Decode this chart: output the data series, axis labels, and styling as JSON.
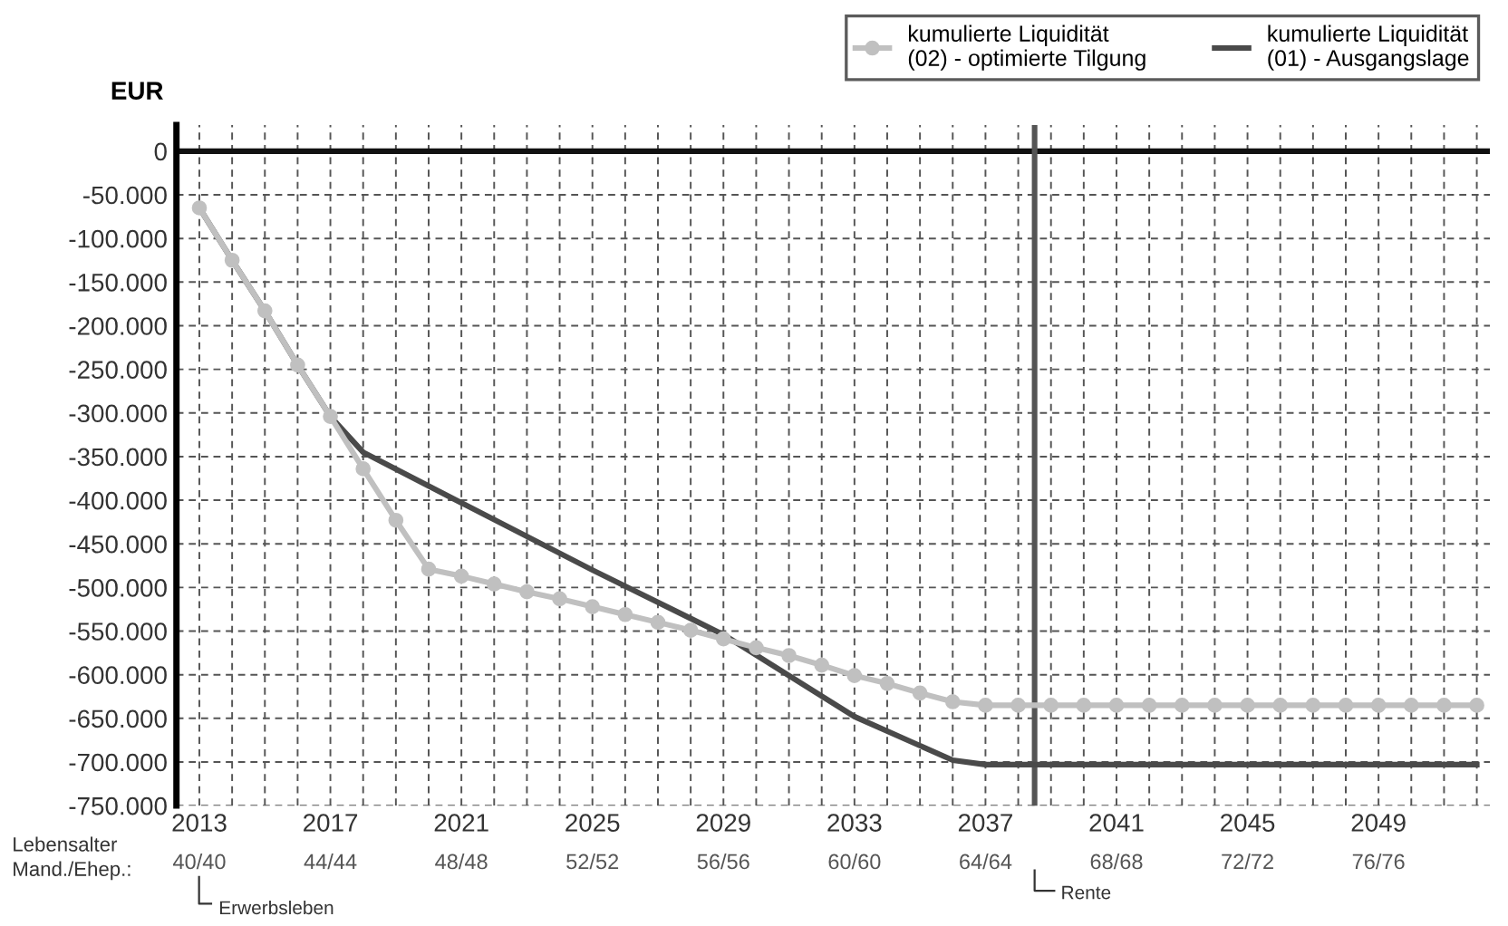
{
  "chart_data": {
    "type": "line",
    "ylabel": "EUR",
    "xlim": [
      2012.3,
      2052.4
    ],
    "ylim": [
      -750000,
      30000
    ],
    "xticks": [
      2013,
      {
        "value": 2014,
        "label": null
      },
      {
        "value": 2015,
        "label": null
      },
      {
        "value": 2016,
        "label": null
      },
      2017,
      {
        "value": 2018,
        "label": null
      },
      {
        "value": 2019,
        "label": null
      },
      {
        "value": 2020,
        "label": null
      },
      2021,
      {
        "value": 2022,
        "label": null
      },
      {
        "value": 2023,
        "label": null
      },
      {
        "value": 2024,
        "label": null
      },
      2025,
      {
        "value": 2026,
        "label": null
      },
      {
        "value": 2027,
        "label": null
      },
      {
        "value": 2028,
        "label": null
      },
      2029,
      {
        "value": 2030,
        "label": null
      },
      {
        "value": 2031,
        "label": null
      },
      {
        "value": 2032,
        "label": null
      },
      2033,
      {
        "value": 2034,
        "label": null
      },
      {
        "value": 2035,
        "label": null
      },
      {
        "value": 2036,
        "label": null
      },
      2037,
      {
        "value": 2038,
        "label": null
      },
      {
        "value": 2039,
        "label": null
      },
      {
        "value": 2040,
        "label": null
      },
      2041,
      {
        "value": 2042,
        "label": null
      },
      {
        "value": 2043,
        "label": null
      },
      {
        "value": 2044,
        "label": null
      },
      2045,
      {
        "value": 2046,
        "label": null
      },
      {
        "value": 2047,
        "label": null
      },
      {
        "value": 2048,
        "label": null
      },
      2049,
      {
        "value": 2050,
        "label": null
      },
      {
        "value": 2051,
        "label": null
      },
      {
        "value": 2052,
        "label": null
      }
    ],
    "yticks": [
      {
        "value": 0,
        "label": "0"
      },
      {
        "value": -50000,
        "label": "-50.000"
      },
      {
        "value": -100000,
        "label": "-100.000"
      },
      {
        "value": -150000,
        "label": "-150.000"
      },
      {
        "value": -200000,
        "label": "-200.000"
      },
      {
        "value": -250000,
        "label": "-250.000"
      },
      {
        "value": -300000,
        "label": "-300.000"
      },
      {
        "value": -350000,
        "label": "-350.000"
      },
      {
        "value": -400000,
        "label": "-400.000"
      },
      {
        "value": -450000,
        "label": "-450.000"
      },
      {
        "value": -500000,
        "label": "-500.000"
      },
      {
        "value": -550000,
        "label": "-550.000"
      },
      {
        "value": -600000,
        "label": "-600.000"
      },
      {
        "value": -650000,
        "label": "-650.000"
      },
      {
        "value": -700000,
        "label": "-700.000"
      },
      {
        "value": -750000,
        "label": "-750.000"
      }
    ],
    "grid": true,
    "legend": "top right",
    "series": [
      {
        "name": "kumulierte Liquidität\n(02) - optimierte Tilgung",
        "color": "#c0c0c0",
        "marker": "circle",
        "x": [
          2013,
          2014,
          2015,
          2016,
          2017,
          2018,
          2019,
          2020,
          2021,
          2022,
          2023,
          2024,
          2025,
          2026,
          2027,
          2028,
          2029,
          2030,
          2031,
          2032,
          2033,
          2034,
          2035,
          2036,
          2037,
          2038,
          2039,
          2040,
          2041,
          2042,
          2043,
          2044,
          2045,
          2046,
          2047,
          2048,
          2049,
          2050,
          2051,
          2052
        ],
        "values": [
          -65000,
          -125000,
          -183000,
          -245000,
          -304000,
          -364000,
          -423000,
          -479000,
          -487000,
          -496000,
          -505000,
          -513000,
          -522000,
          -531000,
          -540000,
          -549000,
          -559000,
          -569000,
          -578000,
          -589000,
          -601000,
          -610000,
          -621000,
          -631000,
          -635000,
          -635000,
          -635000,
          -635000,
          -635000,
          -635000,
          -635000,
          -635000,
          -635000,
          -635000,
          -635000,
          -635000,
          -635000,
          -635000,
          -635000,
          -635000
        ]
      },
      {
        "name": "kumulierte Liquidität\n(01) - Ausgangslage",
        "color": "#4a4a4a",
        "marker": "none",
        "x": [
          2013,
          2014,
          2015,
          2016,
          2017,
          2018,
          2021,
          2025,
          2029,
          2033,
          2036,
          2037,
          2052
        ],
        "values": [
          -65000,
          -125000,
          -183000,
          -245000,
          -304000,
          -345000,
          -403000,
          -480000,
          -554000,
          -648000,
          -698000,
          -703000,
          -703000
        ]
      }
    ],
    "ref_lines": [
      {
        "axis": "y",
        "value": 0,
        "color": "#111111"
      },
      {
        "axis": "x",
        "value": 2038.5,
        "color": "#555555"
      }
    ],
    "annotations": [
      "Lebensalter\nMand./Ehep.:",
      "40/40",
      "44/44",
      "48/48",
      "52/52",
      "56/56",
      "60/60",
      "64/64",
      "68/68",
      "72/72",
      "76/76",
      "Erwerbsleben",
      "Rente"
    ]
  }
}
